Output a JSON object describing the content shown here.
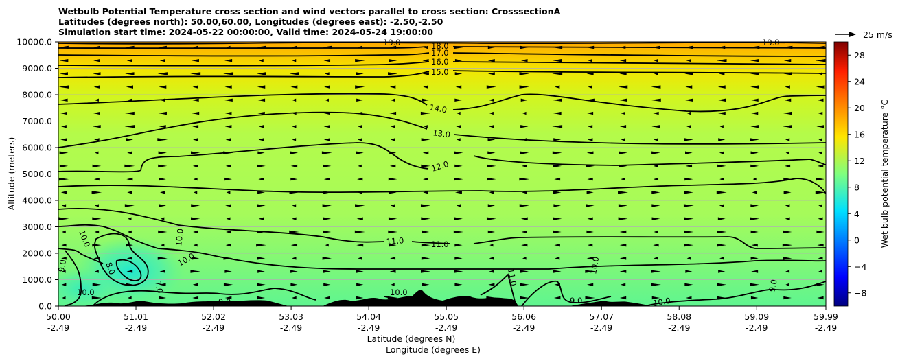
{
  "title": {
    "line1": "Wetbulb Potential Temperature cross section and wind vectors parallel to cross section: CrosssectionA",
    "line2": "Latitudes (degrees north): 50.00,60.00, Longitudes (degrees east): -2.50,-2.50",
    "line3": "Simulation start time: 2024-05-22 00:00:00, Valid time: 2024-05-24 19:00:00"
  },
  "wind_key": {
    "label": "25 m/s"
  },
  "chart_data": {
    "type": "heatmap",
    "ylabel": "Altitude (meters)",
    "xlabel_lat": "Latitude (degrees N)",
    "xlabel_lon": "Longitude (degrees E)",
    "colorbar_label": "Wet bulb potential temperature $^\\circ$C",
    "colorbar_label_display": "Wet bulb potential temperature °C",
    "colorbar_range": [
      -10,
      30
    ],
    "colorbar_ticks": [
      "-8",
      "-4",
      "0",
      "4",
      "8",
      "12",
      "16",
      "20",
      "24",
      "28"
    ],
    "ylim": [
      0,
      10000
    ],
    "y_ticks": [
      "0.0",
      "1000.0",
      "2000.0",
      "3000.0",
      "4000.0",
      "5000.0",
      "6000.0",
      "7000.0",
      "8000.0",
      "9000.0",
      "10000.0"
    ],
    "x_ticks_lat": [
      "50.00",
      "51.01",
      "52.02",
      "53.03",
      "54.04",
      "55.05",
      "56.06",
      "57.07",
      "58.08",
      "59.09",
      "59.99"
    ],
    "x_ticks_lon": [
      "-2.49",
      "-2.49",
      "-2.49",
      "-2.49",
      "-2.49",
      "-2.49",
      "-2.49",
      "-2.49",
      "-2.49",
      "-2.49",
      "-2.49"
    ],
    "grid": "horizontal",
    "contours": [
      {
        "label": "19.0",
        "altitude_m": 9950
      },
      {
        "label": "18.0",
        "altitude_m": 9750
      },
      {
        "label": "17.0",
        "altitude_m": 9480
      },
      {
        "label": "16.0",
        "altitude_m": 9150
      },
      {
        "label": "15.0",
        "altitude_m": 8700
      },
      {
        "label": "14.0",
        "altitude_m": 7700
      },
      {
        "label": "13.0",
        "altitude_m": 6500
      },
      {
        "label": "12.0",
        "altitude_m": 5400
      },
      {
        "label": "11.0",
        "altitude_m": 2350
      },
      {
        "label": "10.0",
        "altitude_m": 1300
      },
      {
        "label": "9.0",
        "altitude_m": 300
      }
    ],
    "contour_labels_extra": [
      "8.0",
      "7.0"
    ],
    "colors": {
      "low": "#00007f",
      "mid": "#7fff7f",
      "high": "#7f0000"
    }
  }
}
